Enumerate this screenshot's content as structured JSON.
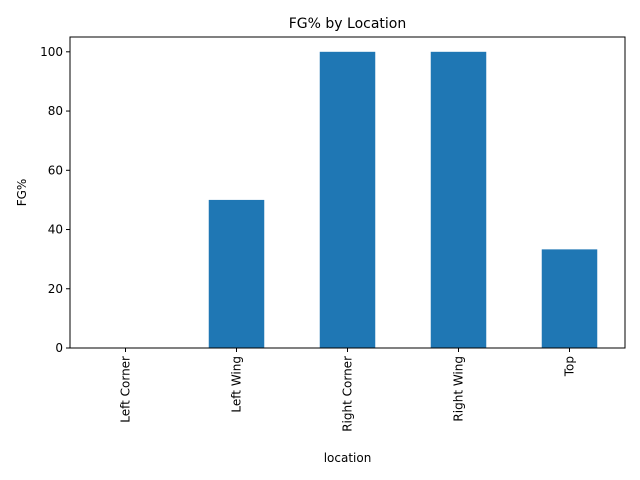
{
  "chart_data": {
    "type": "bar",
    "title": "FG% by Location",
    "xlabel": "location",
    "ylabel": "FG%",
    "categories": [
      "Left Corner",
      "Left Wing",
      "Right Corner",
      "Right Wing",
      "Top"
    ],
    "values": [
      0,
      50,
      100,
      100,
      33.3
    ],
    "ylim": [
      0,
      105
    ],
    "yticks": [
      0,
      20,
      40,
      60,
      80,
      100
    ],
    "grid": false,
    "legend": "none",
    "bar_color": "#1f77b4"
  }
}
